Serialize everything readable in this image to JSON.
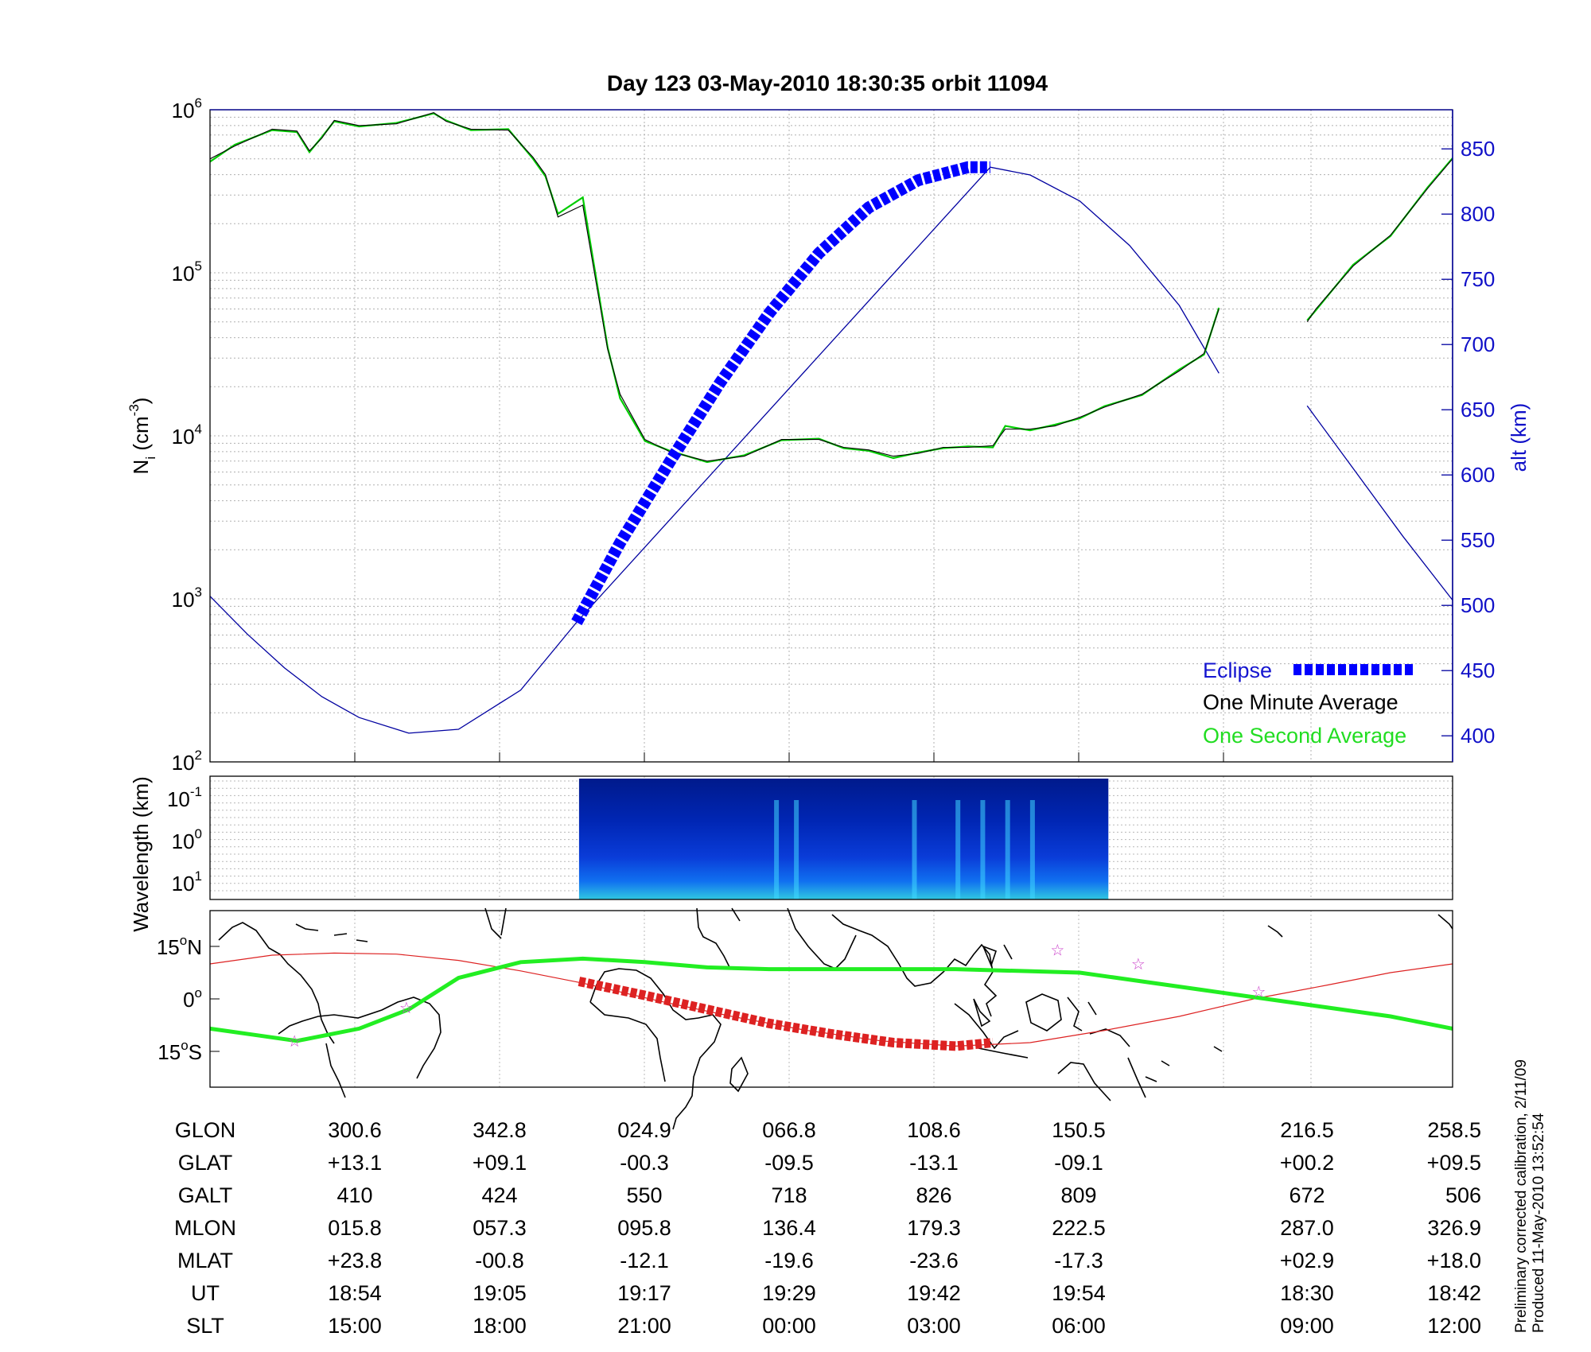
{
  "chart_data": [
    {
      "type": "line",
      "title": "Day 123  03-May-2010 18:30:35   orbit 11094",
      "ylabel_left": "N",
      "ylabel_left_sub": "i",
      "ylabel_left_unit_open": " (cm",
      "ylabel_left_unit_exp": "-3",
      "ylabel_left_unit_close": ")",
      "ylabel_right": "alt (km)",
      "yscale_left": "log",
      "ylim_left": [
        100,
        1000000
      ],
      "left_ticks": [
        {
          "base": "10",
          "exp": "2",
          "value": 100
        },
        {
          "base": "10",
          "exp": "3",
          "value": 1000
        },
        {
          "base": "10",
          "exp": "4",
          "value": 10000
        },
        {
          "base": "10",
          "exp": "5",
          "value": 100000
        },
        {
          "base": "10",
          "exp": "6",
          "value": 1000000
        }
      ],
      "ylim_right": [
        380,
        880
      ],
      "right_ticks": [
        "400",
        "450",
        "500",
        "550",
        "600",
        "650",
        "700",
        "750",
        "800",
        "850"
      ],
      "grid": true,
      "legend_position": "bottom-right",
      "series": [
        {
          "name": "Eclipse",
          "color": "#0000ff",
          "style": "thick-dashed",
          "axis": "right",
          "x": [
            0.295,
            0.33,
            0.37,
            0.41,
            0.45,
            0.49,
            0.53,
            0.57,
            0.61,
            0.628
          ],
          "values": [
            487,
            548,
            610,
            670,
            724,
            770,
            805,
            826,
            836,
            836
          ]
        },
        {
          "name": "altitude",
          "color": "#0000a0",
          "axis": "right",
          "x": [
            0.0,
            0.03,
            0.06,
            0.09,
            0.12,
            0.16,
            0.2,
            0.25,
            0.295,
            0.628,
            0.66,
            0.7,
            0.74,
            0.78,
            0.812,
            0.883,
            0.92,
            0.96,
            1.0
          ],
          "values": [
            507,
            478,
            452,
            430,
            414,
            402,
            405,
            435,
            487,
            836,
            830,
            810,
            776,
            730,
            678,
            653,
            605,
            553,
            504
          ]
        },
        {
          "name": "One Minute Average",
          "color": "#000000",
          "axis": "left",
          "x": [
            0.0,
            0.02,
            0.05,
            0.07,
            0.08,
            0.09,
            0.1,
            0.12,
            0.15,
            0.18,
            0.19,
            0.21,
            0.24,
            0.26,
            0.27,
            0.28,
            0.3,
            0.32,
            0.33,
            0.35,
            0.37,
            0.4,
            0.43,
            0.46,
            0.49,
            0.51,
            0.53,
            0.55,
            0.57,
            0.59,
            0.61,
            0.63,
            0.64,
            0.66,
            0.68,
            0.7,
            0.72,
            0.75,
            0.78,
            0.8,
            0.812,
            0.883,
            0.89,
            0.92,
            0.95,
            0.98,
            1.0
          ],
          "values": [
            500000,
            600000,
            760000,
            740000,
            560000,
            670000,
            860000,
            800000,
            820000,
            960000,
            850000,
            760000,
            750000,
            510000,
            400000,
            220000,
            260000,
            34000,
            18000,
            9500,
            8000,
            7000,
            7500,
            9500,
            9500,
            8500,
            8200,
            7500,
            7800,
            8500,
            8500,
            8700,
            11000,
            11000,
            11500,
            13000,
            15000,
            18000,
            25000,
            32000,
            60000,
            50000,
            60000,
            110000,
            170000,
            330000,
            500000
          ]
        },
        {
          "name": "One Second Average",
          "color": "#00cc00",
          "axis": "left",
          "x": [
            0.0,
            0.02,
            0.05,
            0.07,
            0.08,
            0.09,
            0.1,
            0.12,
            0.15,
            0.18,
            0.19,
            0.21,
            0.24,
            0.26,
            0.27,
            0.28,
            0.3,
            0.32,
            0.33,
            0.35,
            0.37,
            0.4,
            0.43,
            0.46,
            0.49,
            0.51,
            0.53,
            0.55,
            0.57,
            0.59,
            0.61,
            0.63,
            0.64,
            0.66,
            0.68,
            0.7,
            0.72,
            0.75,
            0.78,
            0.8,
            0.812,
            0.883,
            0.89,
            0.92,
            0.95,
            0.98,
            1.0
          ],
          "values": [
            480000,
            610000,
            750000,
            730000,
            550000,
            680000,
            850000,
            790000,
            830000,
            950000,
            860000,
            750000,
            760000,
            500000,
            390000,
            230000,
            290000,
            35000,
            17000,
            9300,
            8100,
            6900,
            7600,
            9400,
            9600,
            8400,
            8100,
            7300,
            7900,
            8400,
            8600,
            8500,
            11500,
            10800,
            11700,
            12800,
            15200,
            17800,
            25500,
            31500,
            61000,
            51000,
            59000,
            112000,
            168000,
            335000,
            505000
          ]
        }
      ]
    },
    {
      "type": "heatmap",
      "ylabel": "Wavelength (km)",
      "y_ticks": [
        {
          "base": "10",
          "exp": "-1"
        },
        {
          "base": "10",
          "exp": "0"
        },
        {
          "base": "10",
          "exp": "1"
        }
      ],
      "data_x_range": [
        0.297,
        0.723
      ],
      "bright_bands_x": [
        0.454,
        0.47,
        0.565,
        0.6,
        0.62,
        0.64,
        0.66
      ]
    },
    {
      "type": "map",
      "y_ticks": [
        {
          "deg": "15",
          "sym": "o",
          "hemi": "N",
          "value": 15
        },
        {
          "deg": "0",
          "sym": "o",
          "hemi": "",
          "value": 0
        },
        {
          "deg": "15",
          "sym": "o",
          "hemi": "S",
          "value": -15
        }
      ],
      "series": [
        {
          "name": "ground track",
          "color": "#dd2222",
          "x": [
            0.0,
            0.05,
            0.1,
            0.15,
            0.2,
            0.25,
            0.3,
            0.36,
            0.42,
            0.48,
            0.54,
            0.6,
            0.66,
            0.72,
            0.78,
            0.84,
            0.9,
            0.95,
            1.0
          ],
          "values": [
            10,
            12.5,
            13.1,
            12.8,
            11,
            8,
            4.5,
            -0.5,
            -5,
            -9,
            -12,
            -13.5,
            -12.5,
            -9,
            -5,
            0,
            4,
            7.5,
            10
          ]
        },
        {
          "name": "eclipse track",
          "color": "#dd2222",
          "style": "thick-dashed",
          "x": [
            0.297,
            0.35,
            0.4,
            0.45,
            0.5,
            0.55,
            0.6,
            0.63
          ],
          "values": [
            5,
            1,
            -3,
            -7,
            -10,
            -12.5,
            -13.5,
            -12.5
          ]
        },
        {
          "name": "magnetic equator",
          "color": "#22ee22",
          "x": [
            0.0,
            0.04,
            0.07,
            0.12,
            0.16,
            0.2,
            0.25,
            0.3,
            0.35,
            0.4,
            0.45,
            0.5,
            0.55,
            0.6,
            0.65,
            0.7,
            0.75,
            0.8,
            0.85,
            0.9,
            0.95,
            1.0
          ],
          "values": [
            -8.5,
            -10.5,
            -12,
            -8.5,
            -3,
            6,
            10.5,
            11.5,
            10.5,
            9,
            8.5,
            8.5,
            8.5,
            8.5,
            8,
            7.5,
            5,
            2.5,
            0,
            -2.5,
            -5,
            -8.5
          ]
        }
      ],
      "stars": [
        {
          "x": 0.068,
          "y": -12
        },
        {
          "x": 0.158,
          "y": -2.5
        },
        {
          "x": 0.682,
          "y": 14
        },
        {
          "x": 0.747,
          "y": 10
        },
        {
          "x": 0.844,
          "y": 2
        }
      ]
    }
  ],
  "legend": {
    "eclipse": "Eclipse",
    "minute": "One Minute Average",
    "second": "One Second Average"
  },
  "table": {
    "row_labels": [
      "GLON",
      "GLAT",
      "GALT",
      "MLON",
      "MLAT",
      "UT",
      "SLT"
    ],
    "columns": [
      [
        "300.6",
        "+13.1",
        "410",
        "015.8",
        "+23.8",
        "18:54",
        "15:00"
      ],
      [
        "342.8",
        "+09.1",
        "424",
        "057.3",
        "-00.8",
        "19:05",
        "18:00"
      ],
      [
        "024.9",
        "-00.3",
        "550",
        "095.8",
        "-12.1",
        "19:17",
        "21:00"
      ],
      [
        "066.8",
        "-09.5",
        "718",
        "136.4",
        "-19.6",
        "19:29",
        "00:00"
      ],
      [
        "108.6",
        "-13.1",
        "826",
        "179.3",
        "-23.6",
        "19:42",
        "03:00"
      ],
      [
        "150.5",
        "-09.1",
        "809",
        "222.5",
        "-17.3",
        "19:54",
        "06:00"
      ],
      [
        "216.5",
        "+00.2",
        "672",
        "287.0",
        "+02.9",
        "18:30",
        "09:00"
      ],
      [
        "258.5",
        "+09.5",
        "506",
        "326.9",
        "+18.0",
        "18:42",
        "12:00"
      ]
    ]
  },
  "footnote": {
    "line1": "Preliminary corrected calibration, 2/11/09",
    "line2": "Produced 11-May-2010 13:52:54"
  },
  "colors": {
    "eclipse": "#0000ff",
    "altitude": "#0000a0",
    "minute": "#000000",
    "second": "#00cc00",
    "track": "#dd2222",
    "equator": "#22ee22",
    "star": "#cc44cc"
  }
}
